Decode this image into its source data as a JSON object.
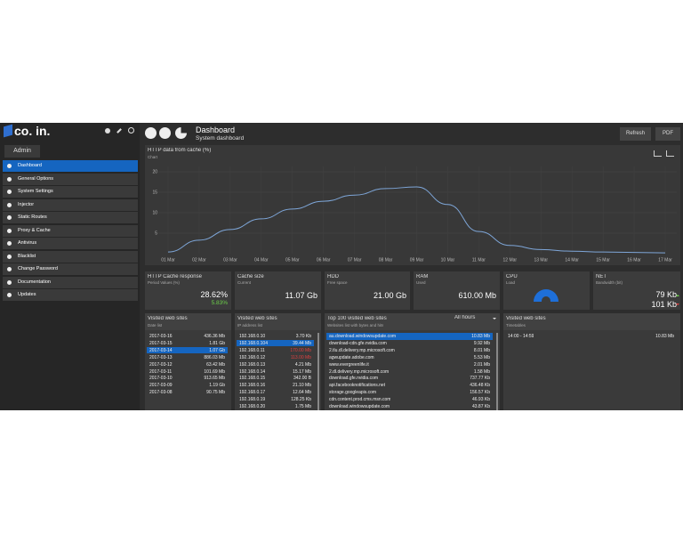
{
  "sidebar": {
    "logo": "co. in.",
    "tab": "Admin",
    "menu": [
      "Dashboard",
      "General Options",
      "System Settings",
      "Injector",
      "Static Routes",
      "Proxy & Cache",
      "Antivirus",
      "Blacklist",
      "Change Password",
      "Documentation",
      "Updates"
    ],
    "selected": 0
  },
  "header": {
    "title": "Dashboard",
    "subtitle": "System dashboard",
    "buttons": [
      "Refresh",
      "PDF"
    ]
  },
  "chart_data": {
    "type": "line",
    "title": "HTTP data from cache (%)",
    "subtitle": "Chart",
    "categories": [
      "01 Mar",
      "02 Mar",
      "03 Mar",
      "04 Mar",
      "05 Mar",
      "06 Mar",
      "07 Mar",
      "08 Mar",
      "09 Mar",
      "10 Mar",
      "11 Mar",
      "12 Mar",
      "13 Mar",
      "14 Mar",
      "15 Mar",
      "16 Mar",
      "17 Mar"
    ],
    "series": [
      {
        "color": "#7ea6d8",
        "values": [
          0.4,
          3.3,
          5.9,
          8.5,
          10.9,
          12.8,
          14.3,
          15.9,
          16.3,
          12,
          5.4,
          2,
          1,
          0.6,
          0.4,
          0.3,
          0.2
        ]
      }
    ],
    "ylim": [
      0,
      20
    ],
    "yticks": [
      5,
      10,
      15,
      20
    ],
    "grid": true
  },
  "tiles": [
    {
      "title": "HTTP Cache response",
      "subtitle": "Period Values (%)",
      "value": "28.62%",
      "value2": "5.83%"
    },
    {
      "title": "Cache size",
      "subtitle": "Current",
      "value": "11.07 Gb"
    },
    {
      "title": "HDD",
      "subtitle": "Free space",
      "value": "21.00 Gb"
    },
    {
      "title": "RAM",
      "subtitle": "Used",
      "value": "610.00 Mb"
    },
    {
      "title": "CPU",
      "subtitle": "Load"
    },
    {
      "title": "NET",
      "subtitle": "Bandwidth (bit)",
      "value": "79 Kb",
      "value2": "101 Kb"
    }
  ],
  "panels": [
    {
      "title": "Visited web sites",
      "subtitle": "Date list",
      "selected": 2,
      "rows": [
        [
          "2017-03-16",
          "436.36 Mb"
        ],
        [
          "2017-03-15",
          "1.81 Gb"
        ],
        [
          "2017-03-14",
          "1.07 Gb"
        ],
        [
          "2017-03-13",
          "886.03 Mb"
        ],
        [
          "2017-03-12",
          "63.42 Mb"
        ],
        [
          "2017-03-11",
          "101.69 Mb"
        ],
        [
          "2017-03-10",
          "913.65 Mb"
        ],
        [
          "2017-03-09",
          "1.19 Gb"
        ],
        [
          "2017-03-08",
          "90.75 Mb"
        ]
      ]
    },
    {
      "title": "Visited web sites",
      "subtitle": "IP address list",
      "selected": 1,
      "alert": [
        2,
        3
      ],
      "rows": [
        [
          "192.168.0.10",
          "3.70 Kb"
        ],
        [
          "192.168.0.104",
          "39.44 Mb"
        ],
        [
          "192.168.0.11",
          "170.00 Mb"
        ],
        [
          "192.168.0.12",
          "113.00 Mb"
        ],
        [
          "192.168.0.13",
          "4.21 Mb"
        ],
        [
          "192.168.0.14",
          "15.17 Mb"
        ],
        [
          "192.168.0.15",
          "342.00 B"
        ],
        [
          "192.168.0.16",
          "21.10 Mb"
        ],
        [
          "192.168.0.17",
          "12.64 Mb"
        ],
        [
          "192.168.0.19",
          "128.25 Kb"
        ],
        [
          "192.168.0.20",
          "1.75 Mb"
        ],
        [
          "192.168.0.200",
          "198.91 Kb"
        ]
      ]
    },
    {
      "title": "Top 100 visited web sites",
      "subtitle": "Websites list with bytes and hits",
      "filter": "All hours",
      "selected": 0,
      "rows": [
        [
          "au.download.windowsupdate.com",
          "10.83 Mb"
        ],
        [
          "download-cdn.gfe.nvidia.com",
          "9.92 Mb"
        ],
        [
          "2.tlu.dl.delivery.mp.microsoft.com",
          "8.01 Mb"
        ],
        [
          "agwupdate.adobe.com",
          "5.53 Mb"
        ],
        [
          "www.evergreenlife.it",
          "2.01 Mb"
        ],
        [
          "2.dl.delivery.mp.microsoft.com",
          "1.58 Mb"
        ],
        [
          "download.gfe.nvidia.com",
          "737.77 Kb"
        ],
        [
          "api.facebooknotifications.net",
          "436.48 Kb"
        ],
        [
          "storage.googleapis.com",
          "156.57 Kb"
        ],
        [
          "cdn.content.prod.cms.msn.com",
          "46.93 Kb"
        ],
        [
          "download.windowsupdate.com",
          "43.87 Kb"
        ],
        [
          "sysymcb.com",
          "37.53 Kb"
        ]
      ]
    },
    {
      "title": "Visited web sites",
      "subtitle": "Timetables",
      "rows": [
        [
          "14:00 - 14:59",
          "10.83 Mb"
        ]
      ]
    }
  ]
}
